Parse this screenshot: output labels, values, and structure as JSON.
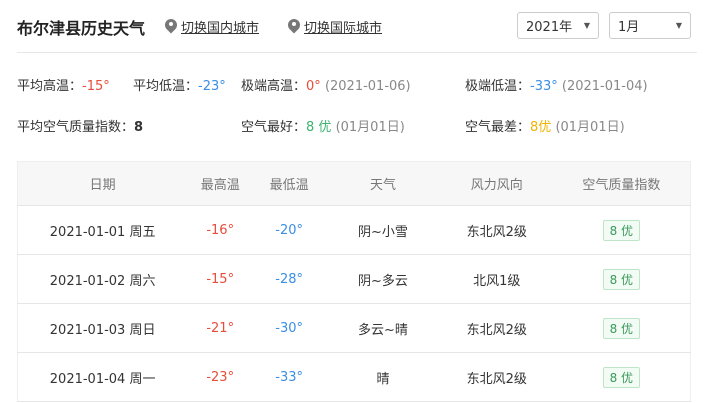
{
  "header": {
    "title": "布尔津县历史天气",
    "link_domestic": "切换国内城市",
    "link_international": "切换国际城市",
    "year": "2021年",
    "month": "1月"
  },
  "stats": {
    "avg_high_label": "平均高温：",
    "avg_high": "-15°",
    "avg_low_label": "平均低温：",
    "avg_low": "-23°",
    "max_high_label": "极端高温：",
    "max_high": "0°",
    "max_high_date": "(2021-01-06)",
    "min_low_label": "极端低温：",
    "min_low": "-33°",
    "min_low_date": "(2021-01-04)",
    "avg_aqi_label": "平均空气质量指数：",
    "avg_aqi": "8",
    "best_air_label": "空气最好：",
    "best_air": "8 优",
    "best_air_date": "(01月01日)",
    "worst_air_label": "空气最差：",
    "worst_air": "8优",
    "worst_air_date": "(01月01日)"
  },
  "colors": {
    "high": "#e74c3c",
    "low": "#3a8ee6",
    "good": "#3cb371",
    "worst": "#f0b400"
  },
  "table": {
    "headers": [
      "日期",
      "最高温",
      "最低温",
      "天气",
      "风力风向",
      "空气质量指数"
    ],
    "rows": [
      {
        "date": "2021-01-01 周五",
        "high": "-16°",
        "low": "-20°",
        "weather": "阴~小雪",
        "wind": "东北风2级",
        "aqi": "8 优"
      },
      {
        "date": "2021-01-02 周六",
        "high": "-15°",
        "low": "-28°",
        "weather": "阴~多云",
        "wind": "北风1级",
        "aqi": "8 优"
      },
      {
        "date": "2021-01-03 周日",
        "high": "-21°",
        "low": "-30°",
        "weather": "多云~晴",
        "wind": "东北风2级",
        "aqi": "8 优"
      },
      {
        "date": "2021-01-04 周一",
        "high": "-23°",
        "low": "-33°",
        "weather": "晴",
        "wind": "东北风2级",
        "aqi": "8 优"
      }
    ]
  }
}
